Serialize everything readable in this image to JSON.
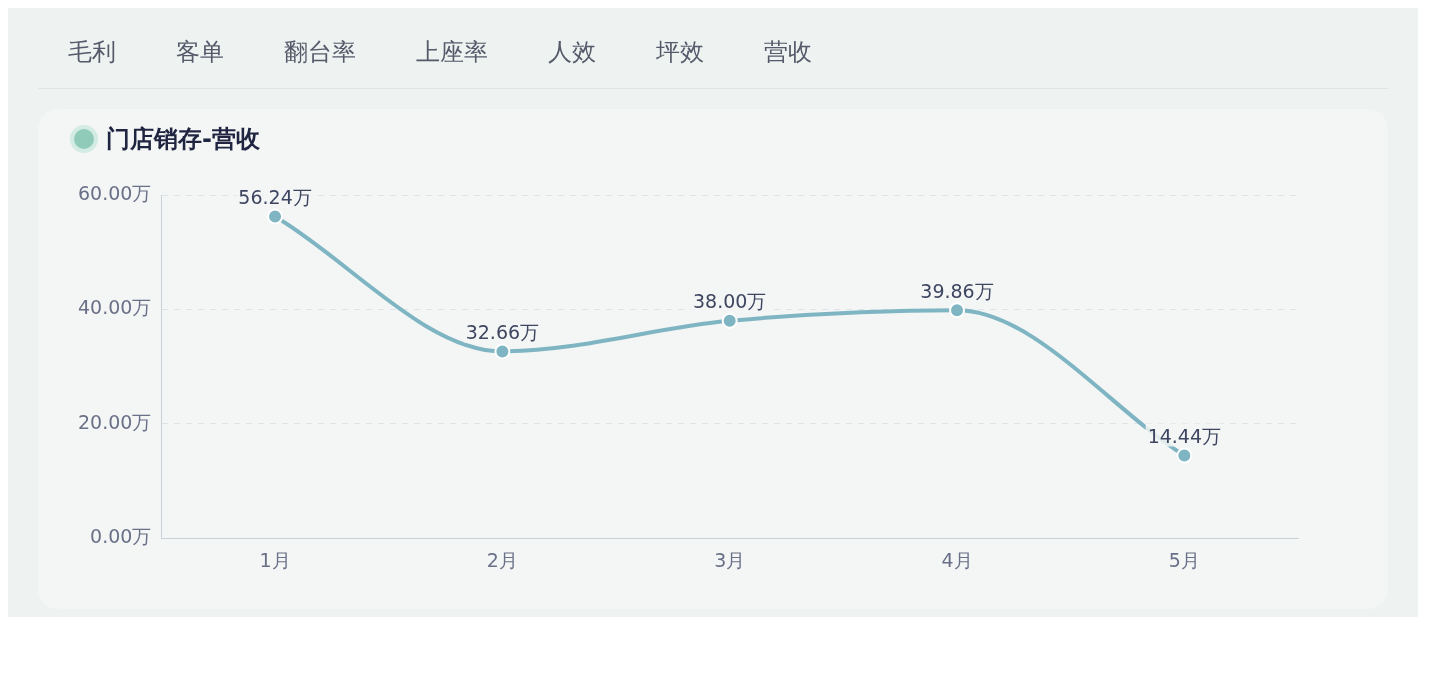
{
  "chart_data": {
    "type": "line",
    "title": "门店销存-营收",
    "annotations": [
      "毛利",
      "客单",
      "翻台率",
      "上座率",
      "人效",
      "坪效",
      "营收"
    ],
    "categories": [
      "1月",
      "2月",
      "3月",
      "4月",
      "5月"
    ],
    "series": [
      {
        "color": "#7fb5c3",
        "values": [
          56.24,
          32.66,
          38.0,
          39.86,
          14.44
        ],
        "value_labels": [
          "56.24万",
          "32.66万",
          "38.00万",
          "39.86万",
          "14.44万"
        ]
      }
    ],
    "ylim": [
      0,
      60
    ],
    "yticks": [
      {
        "value": 0,
        "label": "0.00万"
      },
      {
        "value": 20,
        "label": "20.00万"
      },
      {
        "value": 40,
        "label": "40.00万"
      },
      {
        "value": 60,
        "label": "60.00万"
      }
    ],
    "grid": "y",
    "marker": "circle",
    "line_style": "solid",
    "legend": false
  }
}
